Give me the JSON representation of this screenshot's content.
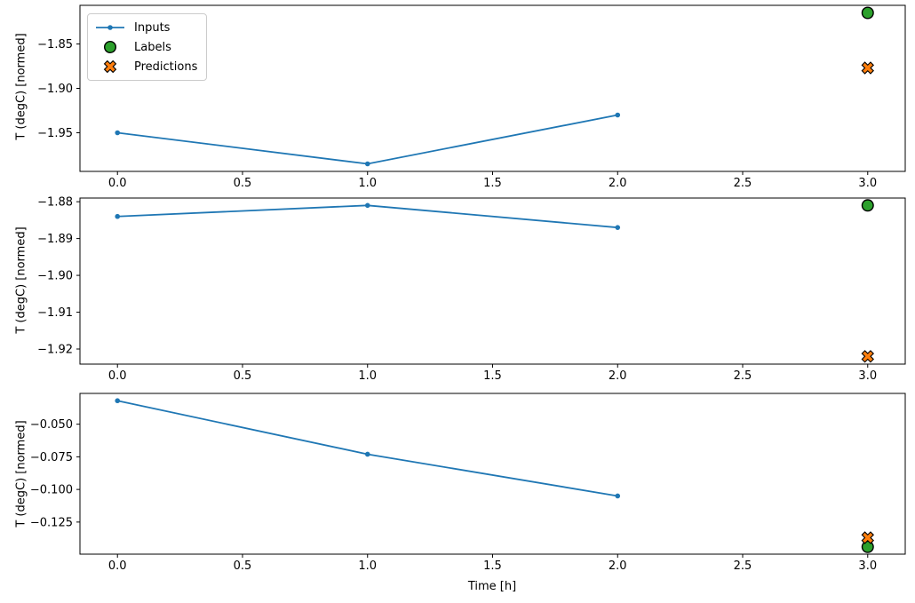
{
  "xlabel": "Time [h]",
  "ylabel": "T (degC) [normed]",
  "colors": {
    "inputs": "#1f77b4",
    "labels": "#2ca02c",
    "predictions": "#ff7f0e",
    "marker_edge": "#000000",
    "axis": "#000000",
    "tick_text": "#000000",
    "legend_border": "#cccccc"
  },
  "legend": {
    "position": "upper-left-of-first-subplot",
    "items": [
      {
        "label": "Inputs",
        "marker": "line-dot"
      },
      {
        "label": "Labels",
        "marker": "circle"
      },
      {
        "label": "Predictions",
        "marker": "x-cross"
      }
    ]
  },
  "chart_data": [
    {
      "type": "line",
      "title": "",
      "xlabel": "",
      "ylabel": "T (degC) [normed]",
      "xlim": [
        -0.15,
        3.15
      ],
      "ylim": [
        -1.9935,
        -1.8065
      ],
      "xticks": [
        0.0,
        0.5,
        1.0,
        1.5,
        2.0,
        2.5,
        3.0
      ],
      "xtick_labels": [
        "0.0",
        "0.5",
        "1.0",
        "1.5",
        "2.0",
        "2.5",
        "3.0"
      ],
      "yticks": [
        -1.85,
        -1.9,
        -1.95
      ],
      "ytick_labels": [
        "−1.85",
        "−1.90",
        "−1.95"
      ],
      "grid": false,
      "series": [
        {
          "name": "Inputs",
          "type": "line",
          "marker": "dot",
          "x": [
            0,
            1,
            2
          ],
          "y": [
            -1.95,
            -1.985,
            -1.93
          ]
        },
        {
          "name": "Labels",
          "type": "scatter",
          "marker": "circle",
          "x": [
            3
          ],
          "y": [
            -1.815
          ]
        },
        {
          "name": "Predictions",
          "type": "scatter",
          "marker": "X",
          "x": [
            3
          ],
          "y": [
            -1.877
          ]
        }
      ]
    },
    {
      "type": "line",
      "title": "",
      "xlabel": "",
      "ylabel": "T (degC) [normed]",
      "xlim": [
        -0.15,
        3.15
      ],
      "ylim": [
        -1.9241,
        -1.879
      ],
      "xticks": [
        0.0,
        0.5,
        1.0,
        1.5,
        2.0,
        2.5,
        3.0
      ],
      "xtick_labels": [
        "0.0",
        "0.5",
        "1.0",
        "1.5",
        "2.0",
        "2.5",
        "3.0"
      ],
      "yticks": [
        -1.88,
        -1.89,
        -1.9,
        -1.91,
        -1.92
      ],
      "ytick_labels": [
        "−1.88",
        "−1.89",
        "−1.90",
        "−1.91",
        "−1.92"
      ],
      "grid": false,
      "series": [
        {
          "name": "Inputs",
          "type": "line",
          "marker": "dot",
          "x": [
            0,
            1,
            2
          ],
          "y": [
            -1.884,
            -1.881,
            -1.887
          ]
        },
        {
          "name": "Labels",
          "type": "scatter",
          "marker": "circle",
          "x": [
            3
          ],
          "y": [
            -1.881
          ]
        },
        {
          "name": "Predictions",
          "type": "scatter",
          "marker": "X",
          "x": [
            3
          ],
          "y": [
            -1.922
          ]
        }
      ]
    },
    {
      "type": "line",
      "title": "",
      "xlabel": "Time [h]",
      "ylabel": "T (degC) [normed]",
      "xlim": [
        -0.15,
        3.15
      ],
      "ylim": [
        -0.1496,
        -0.0264
      ],
      "xticks": [
        0.0,
        0.5,
        1.0,
        1.5,
        2.0,
        2.5,
        3.0
      ],
      "xtick_labels": [
        "0.0",
        "0.5",
        "1.0",
        "1.5",
        "2.0",
        "2.5",
        "3.0"
      ],
      "yticks": [
        -0.05,
        -0.075,
        -0.1,
        -0.125
      ],
      "ytick_labels": [
        "−0.050",
        "−0.075",
        "−0.100",
        "−0.125"
      ],
      "grid": false,
      "series": [
        {
          "name": "Inputs",
          "type": "line",
          "marker": "dot",
          "x": [
            0,
            1,
            2
          ],
          "y": [
            -0.032,
            -0.073,
            -0.105
          ]
        },
        {
          "name": "Labels",
          "type": "scatter",
          "marker": "circle",
          "x": [
            3
          ],
          "y": [
            -0.144
          ]
        },
        {
          "name": "Predictions",
          "type": "scatter",
          "marker": "X",
          "x": [
            3
          ],
          "y": [
            -0.137
          ]
        }
      ]
    }
  ]
}
